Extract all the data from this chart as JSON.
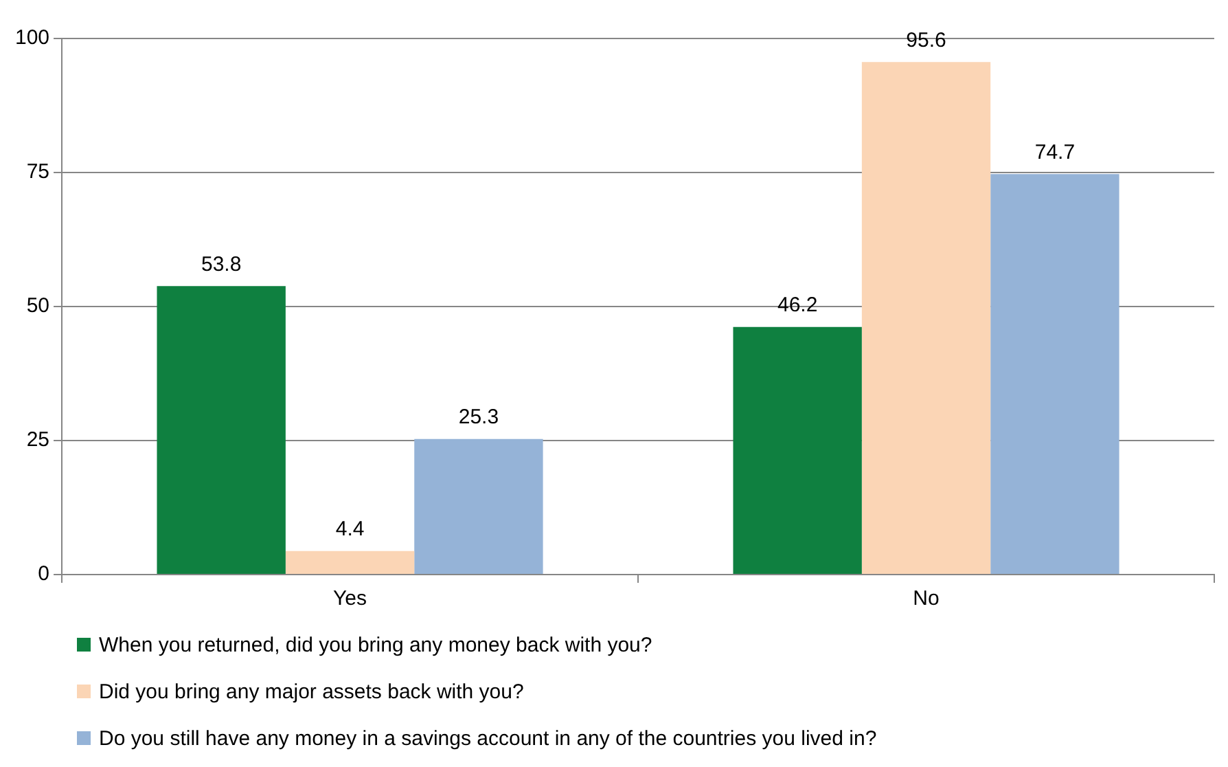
{
  "chart_data": {
    "type": "bar",
    "categories": [
      "Yes",
      "No"
    ],
    "series": [
      {
        "name": "When you returned, did you bring any money back with you?",
        "color": "#0f8040",
        "values": [
          53.8,
          46.2
        ]
      },
      {
        "name": "Did you bring any major assets back with you?",
        "color": "#fbd5b5",
        "values": [
          4.4,
          95.6
        ]
      },
      {
        "name": "Do you still have any money in a savings account in any of the countries you lived in?",
        "color": "#95b3d7",
        "values": [
          25.3,
          74.7
        ]
      }
    ],
    "ylim": [
      0,
      100
    ],
    "yticks": [
      0,
      25,
      50,
      75,
      100
    ],
    "grid": "y",
    "legend": "bottom",
    "data_labels": true
  }
}
